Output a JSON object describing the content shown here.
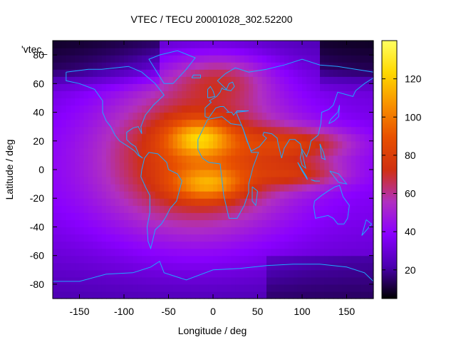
{
  "chart_data": {
    "type": "heatmap",
    "title": "VTEC / TECU 20001028_302.52200",
    "xlabel": "Longitude / deg",
    "ylabel": "Latitude / deg",
    "series_label": "'vtec_",
    "xlim": [
      -180,
      180
    ],
    "ylim": [
      -90,
      90
    ],
    "x_ticks": [
      -150,
      -100,
      -50,
      0,
      50,
      100,
      150
    ],
    "y_ticks": [
      -80,
      -60,
      -40,
      -20,
      0,
      20,
      40,
      60,
      80
    ],
    "zlim": [
      5,
      140
    ],
    "colorbar_ticks": [
      20,
      40,
      60,
      80,
      100,
      120
    ],
    "palette": [
      "#000000",
      "#4b00b0",
      "#8a00ff",
      "#b030c0",
      "#d03010",
      "#e85000",
      "#f89000",
      "#ffd800",
      "#ffff60"
    ],
    "coastline_color": "#20a8ff",
    "features": [
      {
        "lon": -20,
        "lat": 10,
        "sigma_lon": 75,
        "sigma_lat": 40,
        "amp": 50
      },
      {
        "lon": -15,
        "lat": 22,
        "sigma_lon": 25,
        "sigma_lat": 9,
        "amp": 40
      },
      {
        "lon": -5,
        "lat": -10,
        "sigma_lon": 28,
        "sigma_lat": 8,
        "amp": 35
      },
      {
        "lon": 100,
        "lat": 18,
        "sigma_lon": 45,
        "sigma_lat": 8,
        "amp": 30
      },
      {
        "lon": 100,
        "lat": -3,
        "sigma_lon": 40,
        "sigma_lat": 7,
        "amp": 25
      },
      {
        "lon": 10,
        "lat": 65,
        "sigma_lon": 40,
        "sigma_lat": 12,
        "amp": 22
      }
    ]
  }
}
